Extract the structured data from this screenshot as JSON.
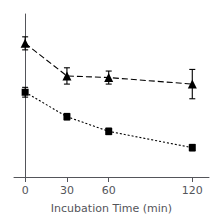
{
  "chart_data": {
    "type": "line",
    "xlabel": "Incubation Time (min)",
    "x": [
      0,
      30,
      60,
      120
    ],
    "xlim": [
      -8,
      132
    ],
    "xticks": [
      0,
      30,
      60,
      120
    ],
    "ylim": [
      10,
      110
    ],
    "tick_labels": "x",
    "grid": false,
    "series": [
      {
        "values": [
          92,
          72,
          71,
          67
        ],
        "yerr": [
          4,
          5,
          4,
          9
        ],
        "color": "#000000",
        "marker": "triangle",
        "line_style": "dashed"
      },
      {
        "values": [
          62,
          47,
          38,
          28
        ],
        "yerr": [
          3,
          2,
          2,
          2
        ],
        "color": "#000000",
        "marker": "square",
        "line_style": "dotted"
      }
    ]
  }
}
